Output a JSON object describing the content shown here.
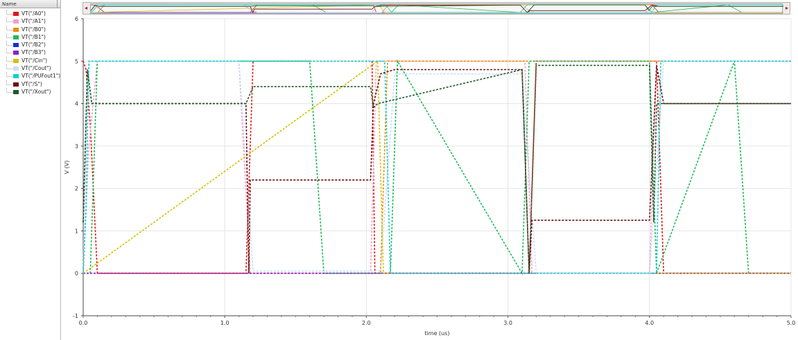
{
  "legend": {
    "header": "Name",
    "items": [
      {
        "label": "VT(\"/A0\")",
        "color": "#e8150e"
      },
      {
        "label": "VT(\"/A1\")",
        "color": "#f0a0c8"
      },
      {
        "label": "VT(\"/B0\")",
        "color": "#f28a00"
      },
      {
        "label": "VT(\"/B1\")",
        "color": "#1fb95a"
      },
      {
        "label": "VT(\"/B2\")",
        "color": "#1030e0"
      },
      {
        "label": "VT(\"/B3\")",
        "color": "#8a22c8"
      },
      {
        "label": "VT(\"/Cin\")",
        "color": "#d4c000"
      },
      {
        "label": "VT(\"/Cout\")",
        "color": "#c9dcf5"
      },
      {
        "label": "VT(\"/PUFout1\")",
        "color": "#10d0d0"
      },
      {
        "label": "VT(\"/S\")",
        "color": "#6b0a0a"
      },
      {
        "label": "VT(\"/Xout\")",
        "color": "#1d5a2a"
      }
    ]
  },
  "chart_data": {
    "type": "line",
    "xlabel": "time (us)",
    "ylabel": "V (V)",
    "xlim": [
      0,
      5
    ],
    "ylim": [
      -1,
      6
    ],
    "xticks": [
      "0.0",
      "1.0",
      "2.0",
      "3.0",
      "4.0",
      "5.0"
    ],
    "yticks": [
      "-1",
      "0",
      "1",
      "2",
      "3",
      "4",
      "5",
      "6"
    ],
    "grid": true,
    "series": [
      {
        "name": "VT(\"/A0\")",
        "color": "#e8150e",
        "x": [
          0,
          0.02,
          0.05,
          0.1,
          1.15,
          1.2,
          2.04,
          2.06,
          2.08,
          2.1,
          3.15,
          3.2,
          4.05,
          4.1,
          5
        ],
        "y": [
          5,
          4.8,
          3.5,
          0,
          0,
          5,
          5,
          0,
          0,
          0,
          0,
          5,
          5,
          0,
          0
        ]
      },
      {
        "name": "VT(\"/A1\")",
        "color": "#f0a0c8",
        "x": [
          0,
          0.04,
          0.1,
          1.1,
          1.18,
          2.03,
          2.07,
          2.1,
          3.12,
          3.17,
          4.0,
          4.05,
          5
        ],
        "y": [
          0,
          3,
          5,
          5,
          0,
          0,
          5,
          5,
          5,
          0,
          0,
          5,
          5
        ]
      },
      {
        "name": "VT(\"/B0\")",
        "color": "#f28a00",
        "x": [
          0,
          1.1,
          1.15,
          2.05,
          2.1,
          2.15,
          5
        ],
        "y": [
          0,
          0,
          0,
          0,
          0,
          5,
          5
        ]
      },
      {
        "name": "VT(\"/B1\")",
        "color": "#1fb95a",
        "x": [
          0,
          0.05,
          0.1,
          1.2,
          1.25,
          1.6,
          1.7,
          2.17,
          2.22,
          3.1,
          3.15,
          3.2,
          4.0,
          4.05,
          4.6,
          4.7,
          5
        ],
        "y": [
          0,
          0,
          5,
          5,
          5,
          5,
          0,
          0,
          5,
          0,
          5,
          5,
          5,
          0,
          5,
          0,
          0
        ]
      },
      {
        "name": "VT(\"/B2\")",
        "color": "#1030e0",
        "x": [
          0,
          0.05,
          5
        ],
        "y": [
          0,
          0,
          0
        ]
      },
      {
        "name": "VT(\"/B3\")",
        "color": "#8a22c8",
        "x": [
          0,
          5
        ],
        "y": [
          0,
          0
        ]
      },
      {
        "name": "VT(\"/Cin\")",
        "color": "#d4c000",
        "x": [
          0,
          2.08,
          2.12,
          5
        ],
        "y": [
          0,
          5,
          0,
          0
        ]
      },
      {
        "name": "VT(\"/Cout\")",
        "color": "#c9dcf5",
        "x": [
          0,
          0.03,
          0.05,
          1.1,
          1.2,
          2.1,
          2.2,
          3.1,
          3.2,
          4.0,
          4.1,
          5
        ],
        "y": [
          0,
          4.6,
          5,
          5,
          0.05,
          0.05,
          4.7,
          4.7,
          0,
          0,
          5,
          5
        ]
      },
      {
        "name": "VT(\"/PUFout1\")",
        "color": "#10d0d0",
        "x": [
          0,
          0.02,
          0.04,
          0.06,
          2.13,
          2.17,
          4.05,
          4.08,
          5
        ],
        "y": [
          0,
          1.5,
          5,
          5,
          5,
          0,
          0,
          5,
          5
        ]
      },
      {
        "name": "VT(\"/S\")",
        "color": "#6b0a0a",
        "x": [
          0,
          0.03,
          0.06,
          0.1,
          1.15,
          1.17,
          1.18,
          1.2,
          2.03,
          2.05,
          2.08,
          2.1,
          2.2,
          3.1,
          3.15,
          3.17,
          3.2,
          4.0,
          4.05,
          4.1,
          5
        ],
        "y": [
          1.2,
          4.8,
          4.0,
          4.0,
          4.0,
          0,
          2.2,
          2.2,
          2.2,
          4.0,
          4.4,
          4.7,
          4.8,
          4.8,
          0,
          1.25,
          1.25,
          1.25,
          4.9,
          4.0,
          4.0
        ]
      },
      {
        "name": "VT(\"/Xout\")",
        "color": "#1d5a2a",
        "x": [
          0,
          0.03,
          0.06,
          0.1,
          1.1,
          1.15,
          1.2,
          2.03,
          2.05,
          2.08,
          3.1,
          3.15,
          3.2,
          4.0,
          4.03,
          4.05,
          5
        ],
        "y": [
          1.2,
          4.8,
          4.0,
          4.0,
          4.0,
          4.0,
          4.4,
          4.4,
          3.9,
          4.0,
          4.8,
          0,
          4.9,
          4.9,
          1.2,
          4.0,
          4.0
        ]
      }
    ]
  }
}
